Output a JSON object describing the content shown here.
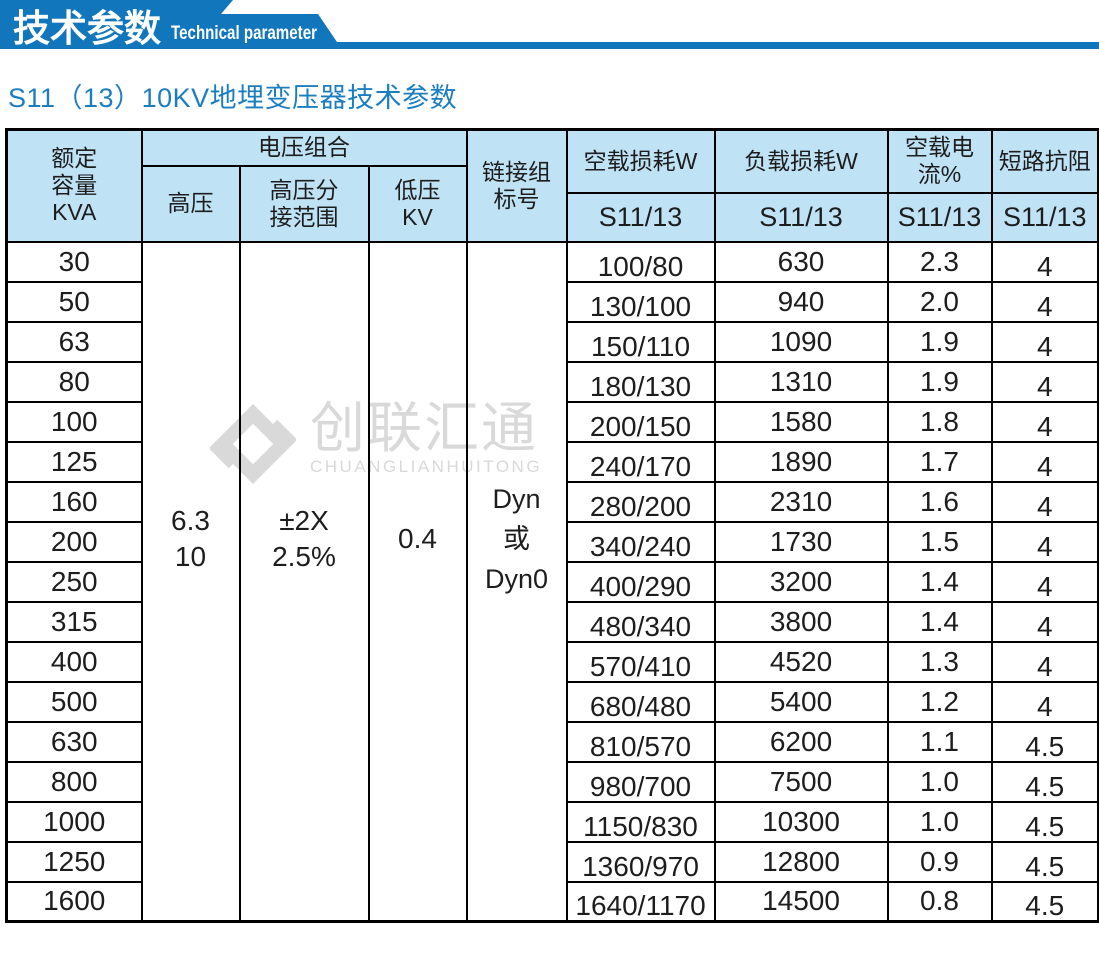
{
  "banner": {
    "title_zh": "技术参数",
    "title_en": "Technical parameter"
  },
  "page_title": "S11（13）10KV地埋变压器技术参数",
  "watermark": {
    "logo": "chuanglianhuitong-diamond-logo",
    "name_zh": "创联汇通",
    "name_en": "CHUANGLIANHUITONG"
  },
  "colors": {
    "banner_blue": "#1176bb",
    "header_light_blue": "#bfe2f5",
    "title_blue": "#1b7ec0",
    "watermark_gray": "#d9d9d9",
    "border_black": "#000000"
  },
  "table": {
    "header": {
      "rated_capacity": "额定\n容量\nKVA",
      "voltage_combination": "电压组合",
      "high_voltage": "高压",
      "hv_tap_range": "高压分\n接范围",
      "low_voltage": "低压\nKV",
      "vector_group": "链接组\n标号",
      "no_load_loss": "空载损耗W",
      "load_loss": "负载损耗W",
      "no_load_current": "空载电流%",
      "impedance": "短路抗阻",
      "series": "S11/13"
    },
    "merged": {
      "high_voltage": "6.3\n10",
      "hv_tap_range": "±2X\n2.5%",
      "low_voltage": "0.4",
      "vector_group": "Dyn\n或\nDyn0"
    },
    "rows": [
      {
        "capacity": "30",
        "no_load_loss": "100/80",
        "load_loss": "630",
        "no_load_current": "2.3",
        "impedance": "4"
      },
      {
        "capacity": "50",
        "no_load_loss": "130/100",
        "load_loss": "940",
        "no_load_current": "2.0",
        "impedance": "4"
      },
      {
        "capacity": "63",
        "no_load_loss": "150/110",
        "load_loss": "1090",
        "no_load_current": "1.9",
        "impedance": "4"
      },
      {
        "capacity": "80",
        "no_load_loss": "180/130",
        "load_loss": "1310",
        "no_load_current": "1.9",
        "impedance": "4"
      },
      {
        "capacity": "100",
        "no_load_loss": "200/150",
        "load_loss": "1580",
        "no_load_current": "1.8",
        "impedance": "4"
      },
      {
        "capacity": "125",
        "no_load_loss": "240/170",
        "load_loss": "1890",
        "no_load_current": "1.7",
        "impedance": "4"
      },
      {
        "capacity": "160",
        "no_load_loss": "280/200",
        "load_loss": "2310",
        "no_load_current": "1.6",
        "impedance": "4"
      },
      {
        "capacity": "200",
        "no_load_loss": "340/240",
        "load_loss": "1730",
        "no_load_current": "1.5",
        "impedance": "4"
      },
      {
        "capacity": "250",
        "no_load_loss": "400/290",
        "load_loss": "3200",
        "no_load_current": "1.4",
        "impedance": "4"
      },
      {
        "capacity": "315",
        "no_load_loss": "480/340",
        "load_loss": "3800",
        "no_load_current": "1.4",
        "impedance": "4"
      },
      {
        "capacity": "400",
        "no_load_loss": "570/410",
        "load_loss": "4520",
        "no_load_current": "1.3",
        "impedance": "4"
      },
      {
        "capacity": "500",
        "no_load_loss": "680/480",
        "load_loss": "5400",
        "no_load_current": "1.2",
        "impedance": "4"
      },
      {
        "capacity": "630",
        "no_load_loss": "810/570",
        "load_loss": "6200",
        "no_load_current": "1.1",
        "impedance": "4.5"
      },
      {
        "capacity": "800",
        "no_load_loss": "980/700",
        "load_loss": "7500",
        "no_load_current": "1.0",
        "impedance": "4.5"
      },
      {
        "capacity": "1000",
        "no_load_loss": "1150/830",
        "load_loss": "10300",
        "no_load_current": "1.0",
        "impedance": "4.5"
      },
      {
        "capacity": "1250",
        "no_load_loss": "1360/970",
        "load_loss": "12800",
        "no_load_current": "0.9",
        "impedance": "4.5"
      },
      {
        "capacity": "1600",
        "no_load_loss": "1640/1170",
        "load_loss": "14500",
        "no_load_current": "0.8",
        "impedance": "4.5"
      }
    ]
  }
}
